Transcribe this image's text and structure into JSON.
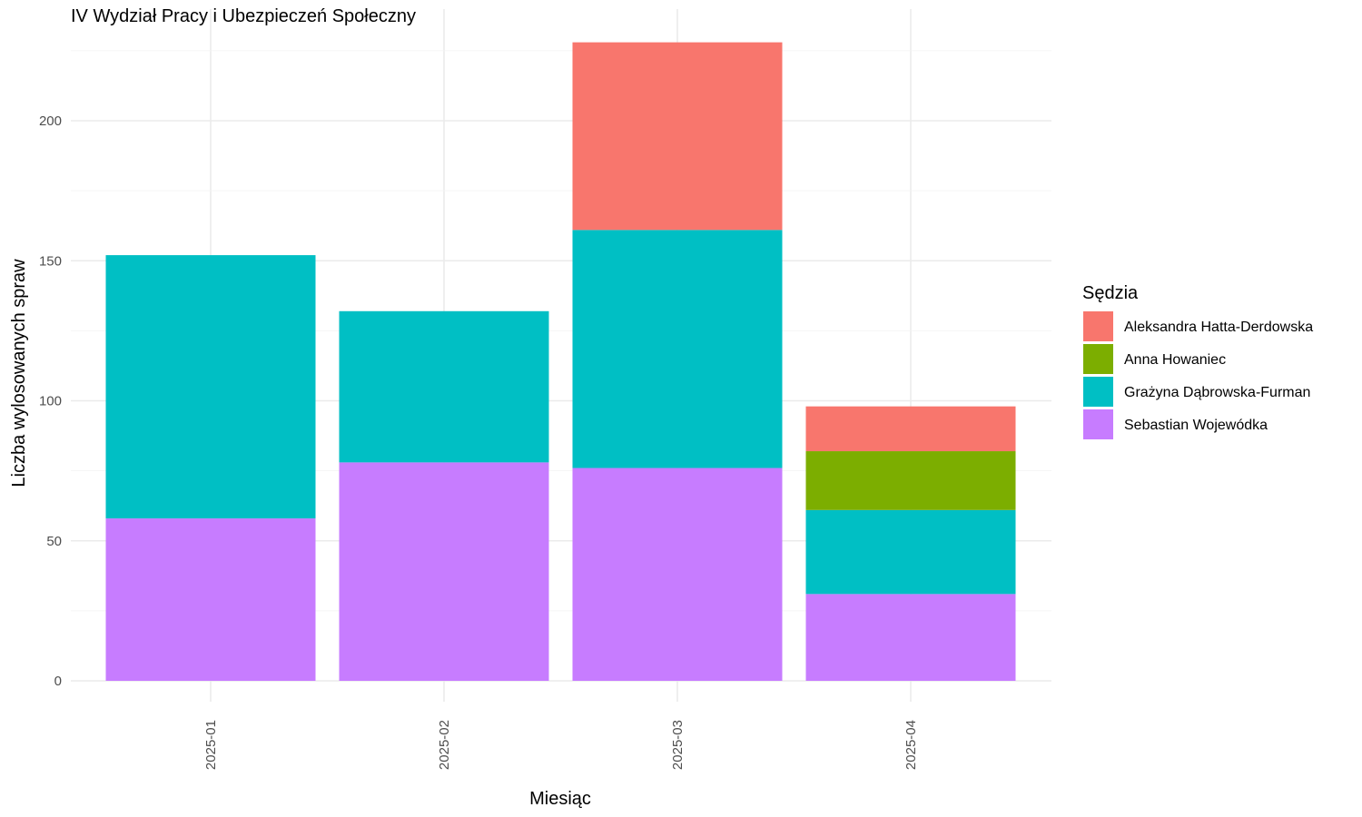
{
  "chart_data": {
    "type": "bar",
    "stacked": true,
    "title": "IV Wydział Pracy i Ubezpieczeń Społeczny",
    "xlabel": "Miesiąc",
    "ylabel": "Liczba wylosowanych spraw",
    "categories": [
      "2025-01",
      "2025-02",
      "2025-03",
      "2025-04"
    ],
    "ylim": [
      0,
      235
    ],
    "yticks": [
      0,
      50,
      100,
      150,
      200
    ],
    "grid": true,
    "legend": {
      "title": "Sędzia",
      "placement": "right"
    },
    "series": [
      {
        "name": "Sebastian Wojewódka",
        "color": "#C77CFF",
        "values": [
          58,
          78,
          76,
          31
        ]
      },
      {
        "name": "Grażyna Dąbrowska-Furman",
        "color": "#00BFC4",
        "values": [
          94,
          54,
          85,
          30
        ]
      },
      {
        "name": "Anna Howaniec",
        "color": "#7CAE00",
        "values": [
          0,
          0,
          0,
          21
        ]
      },
      {
        "name": "Aleksandra Hatta-Derdowska",
        "color": "#F8766D",
        "values": [
          0,
          0,
          67,
          16
        ]
      }
    ],
    "legend_order": [
      "Aleksandra Hatta-Derdowska",
      "Anna Howaniec",
      "Grażyna Dąbrowska-Furman",
      "Sebastian Wojewódka"
    ]
  }
}
